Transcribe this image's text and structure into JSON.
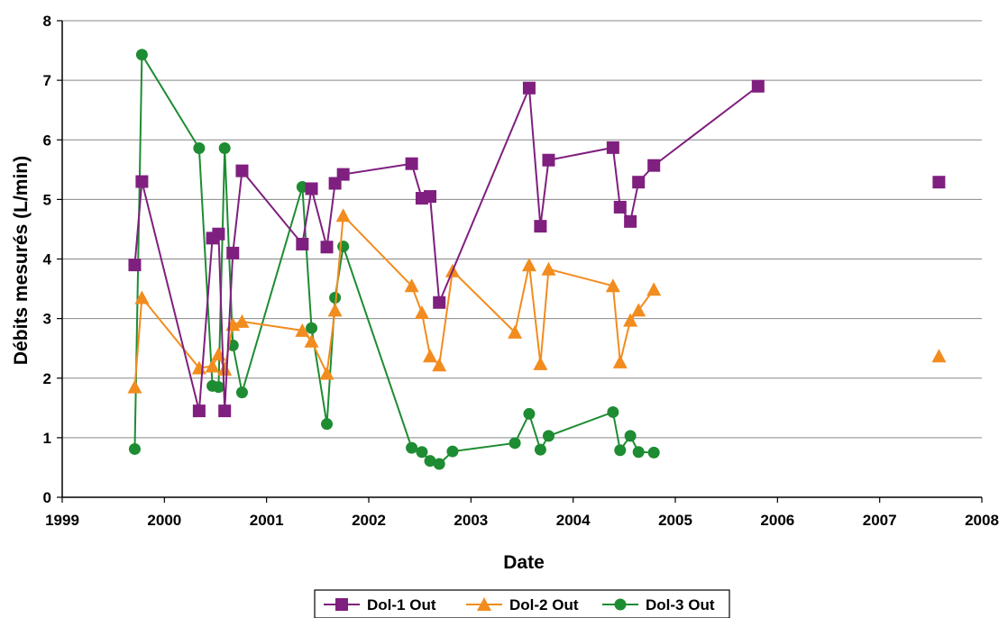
{
  "chart_data": {
    "type": "line",
    "title": "",
    "xlabel": "Date",
    "ylabel": "Débits mesurés (L/min)",
    "xlim": [
      1999,
      2008
    ],
    "ylim": [
      0,
      8
    ],
    "x_ticks": [
      "1999",
      "2000",
      "2001",
      "2002",
      "2003",
      "2004",
      "2005",
      "2006",
      "2007",
      "2008"
    ],
    "y_ticks": [
      "0",
      "1",
      "2",
      "3",
      "4",
      "5",
      "6",
      "7",
      "8"
    ],
    "grid": "horizontal",
    "legend_position": "bottom",
    "series": [
      {
        "name": "Dol-1 Out",
        "color": "#7f1f7f",
        "marker": "square",
        "x": [
          1999.71,
          1999.78,
          2000.34,
          2000.47,
          2000.53,
          2000.59,
          2000.67,
          2000.76,
          2001.35,
          2001.44,
          2001.59,
          2001.67,
          2001.75,
          2002.42,
          2002.52,
          2002.6,
          2002.69,
          2003.57,
          2003.68,
          2003.76,
          2004.39,
          2004.46,
          2004.56,
          2004.64,
          2004.79,
          2005.81,
          2007.58
        ],
        "y": [
          3.9,
          5.3,
          1.45,
          4.35,
          4.42,
          1.45,
          4.1,
          5.48,
          4.25,
          5.18,
          4.2,
          5.27,
          5.42,
          5.6,
          5.02,
          5.05,
          3.27,
          6.87,
          4.55,
          5.66,
          5.87,
          4.87,
          4.63,
          5.29,
          5.57,
          6.9,
          5.29
        ],
        "segments": [
          [
            0,
            25
          ],
          [
            26,
            26
          ]
        ]
      },
      {
        "name": "Dol-2 Out",
        "color": "#f28c1e",
        "marker": "triangle",
        "x": [
          1999.71,
          1999.78,
          2000.34,
          2000.47,
          2000.53,
          2000.59,
          2000.67,
          2000.76,
          2001.35,
          2001.44,
          2001.59,
          2001.67,
          2001.75,
          2002.42,
          2002.52,
          2002.6,
          2002.69,
          2002.82,
          2003.43,
          2003.57,
          2003.68,
          2003.76,
          2004.39,
          2004.46,
          2004.56,
          2004.64,
          2004.79,
          2007.58
        ],
        "y": [
          1.85,
          3.35,
          2.17,
          2.2,
          2.4,
          2.15,
          2.9,
          2.95,
          2.8,
          2.62,
          2.08,
          3.14,
          4.73,
          3.55,
          3.1,
          2.37,
          2.22,
          3.8,
          2.77,
          3.9,
          2.24,
          3.83,
          3.55,
          2.27,
          2.97,
          3.14,
          3.49,
          2.37
        ],
        "segments": [
          [
            0,
            26
          ],
          [
            27,
            27
          ]
        ]
      },
      {
        "name": "Dol-3 Out",
        "color": "#1e8c32",
        "marker": "circle",
        "x": [
          1999.71,
          1999.78,
          2000.34,
          2000.47,
          2000.53,
          2000.59,
          2000.67,
          2000.76,
          2001.35,
          2001.44,
          2001.59,
          2001.67,
          2001.75,
          2002.42,
          2002.52,
          2002.6,
          2002.69,
          2002.82,
          2003.43,
          2003.57,
          2003.68,
          2003.76,
          2004.39,
          2004.46,
          2004.56,
          2004.64,
          2004.79
        ],
        "y": [
          0.81,
          7.43,
          5.86,
          1.87,
          1.85,
          5.86,
          2.55,
          1.76,
          5.21,
          2.84,
          1.23,
          3.35,
          4.21,
          0.83,
          0.76,
          0.61,
          0.56,
          0.77,
          0.91,
          1.4,
          0.8,
          1.03,
          1.43,
          0.79,
          1.03,
          0.76,
          0.75
        ],
        "segments": [
          [
            0,
            26
          ]
        ]
      }
    ]
  }
}
